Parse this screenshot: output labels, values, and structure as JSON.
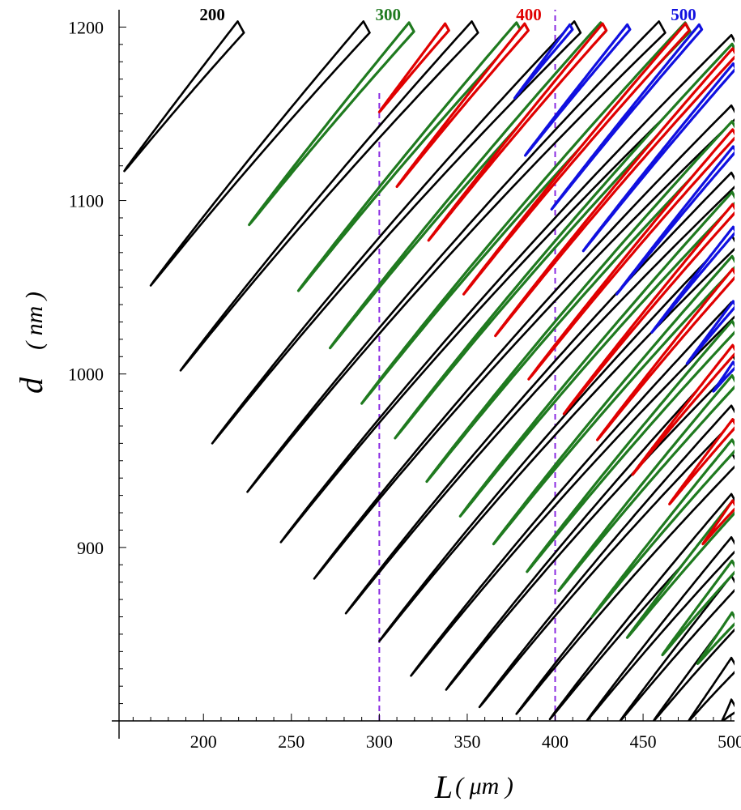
{
  "chart_data": {
    "type": "line",
    "xlabel": {
      "var": "L",
      "unit": "μm"
    },
    "ylabel": {
      "var": "d",
      "unit": "nm"
    },
    "xlim": [
      152,
      502
    ],
    "ylim": [
      800,
      1210
    ],
    "xticks": [
      200,
      250,
      300,
      350,
      400,
      450,
      500
    ],
    "yticks": [
      900,
      1000,
      1100,
      1200
    ],
    "grid": false,
    "reference_lines": [
      {
        "axis": "x",
        "value": 300,
        "color": "#8a2be2",
        "style": "dashed"
      },
      {
        "axis": "x",
        "value": 400,
        "color": "#8a2be2",
        "style": "dashed"
      }
    ],
    "series": [
      {
        "name": "200",
        "color": "#000000",
        "tipL": [
          155,
          170,
          187,
          205,
          225,
          244,
          263,
          281,
          300,
          318,
          338,
          357,
          378,
          397,
          418,
          437,
          456,
          476,
          495
        ],
        "tipD": [
          1117,
          1051,
          1002,
          960,
          932,
          903,
          882,
          862,
          846,
          826,
          818,
          808,
          804,
          801,
          800,
          800,
          800,
          800,
          800
        ]
      },
      {
        "name": "300",
        "color": "#1f7a1f",
        "tipL": [
          226,
          254,
          272,
          290,
          309,
          327,
          346,
          365,
          384,
          402,
          421,
          441,
          461,
          481
        ],
        "tipD": [
          1086,
          1048,
          1015,
          983,
          963,
          938,
          918,
          902,
          886,
          875,
          860,
          848,
          838,
          833
        ]
      },
      {
        "name": "400",
        "color": "#e00000",
        "tipL": [
          300,
          310,
          328,
          348,
          366,
          385,
          405,
          424,
          444,
          465,
          484
        ],
        "tipD": [
          1151,
          1108,
          1077,
          1046,
          1022,
          997,
          977,
          962,
          942,
          925,
          902
        ]
      },
      {
        "name": "500",
        "color": "#1010e0",
        "tipL": [
          377,
          383,
          398,
          416,
          435,
          455,
          475,
          490
        ],
        "tipD": [
          1159,
          1126,
          1095,
          1071,
          1046,
          1024,
          1006,
          990
        ]
      }
    ],
    "annotations": [
      {
        "text": "200",
        "x": 205,
        "y": 1203,
        "color": "#000000"
      },
      {
        "text": "300",
        "x": 305,
        "y": 1203,
        "color": "#1f7a1f"
      },
      {
        "text": "400",
        "x": 385,
        "y": 1203,
        "color": "#e00000"
      },
      {
        "text": "500",
        "x": 473,
        "y": 1203,
        "color": "#1010e0"
      }
    ]
  }
}
